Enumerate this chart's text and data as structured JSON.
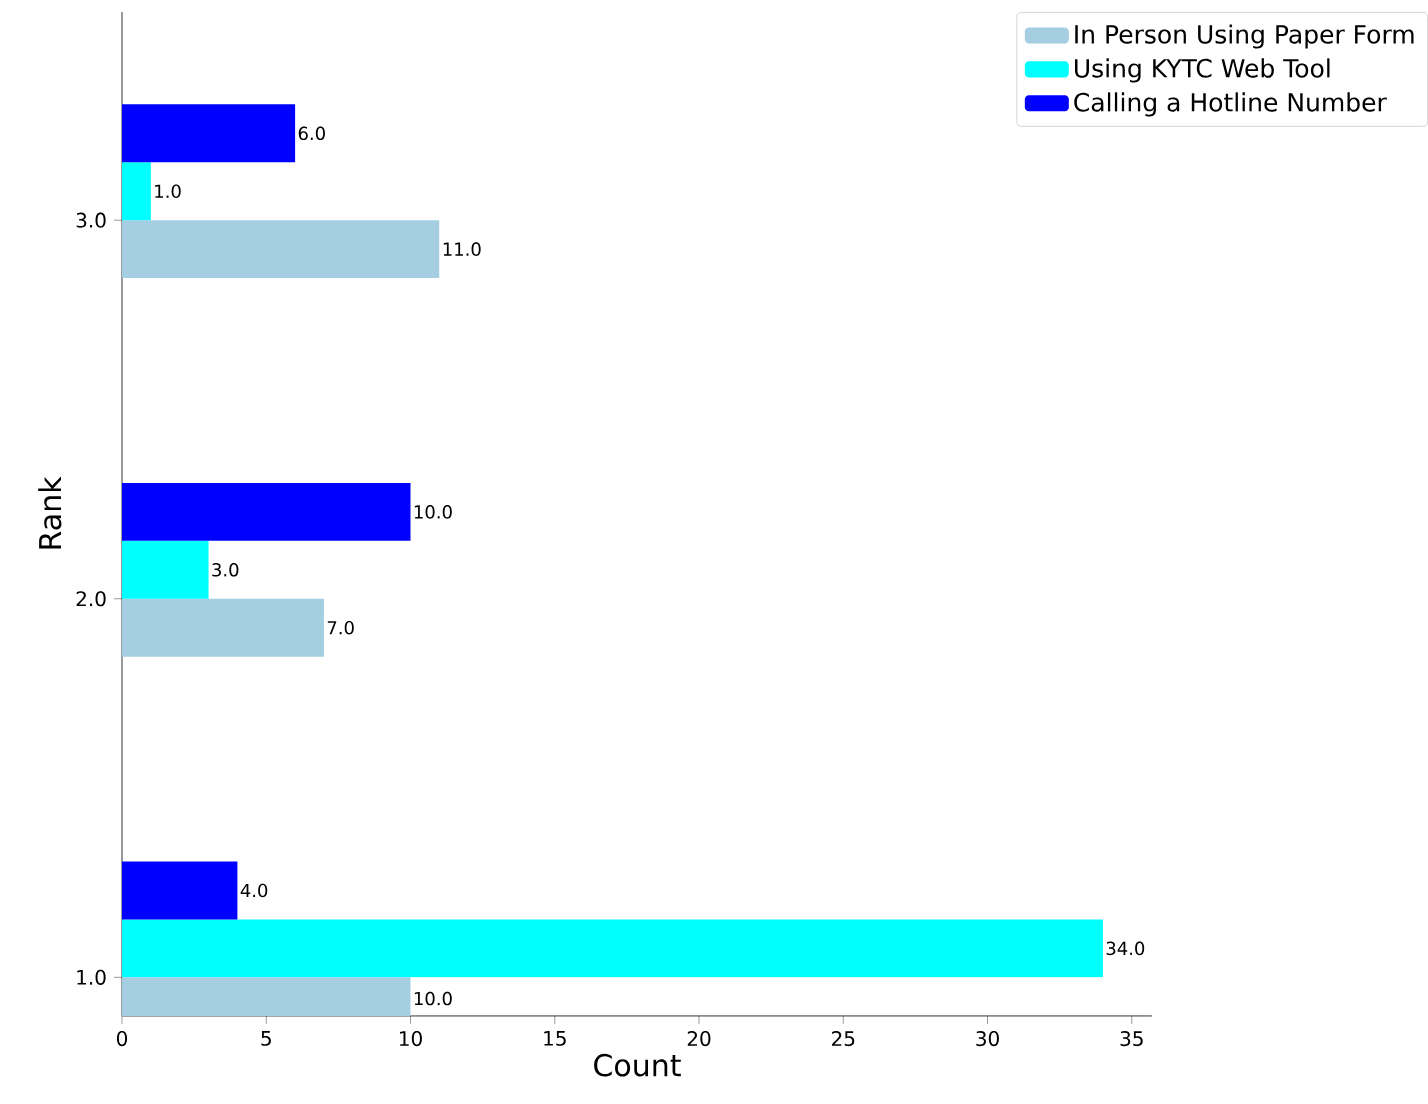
{
  "chart_data": {
    "type": "bar",
    "orientation": "horizontal",
    "xlabel": "Count",
    "ylabel": "Rank",
    "categories": [
      "3.0",
      "2.0",
      "1.0"
    ],
    "series": [
      {
        "name": "In Person Using Paper Form",
        "color": "#a6cee3",
        "values": [
          11,
          7,
          10
        ],
        "value_labels": [
          "11.0",
          "7.0",
          "10.0"
        ]
      },
      {
        "name": "Using KYTC Web Tool",
        "color": "#00ffff",
        "values": [
          1,
          3,
          34
        ],
        "value_labels": [
          "1.0",
          "3.0",
          "34.0"
        ]
      },
      {
        "name": "Calling a Hotline Number",
        "color": "#0000ff",
        "values": [
          6,
          10,
          4
        ],
        "value_labels": [
          "6.0",
          "10.0",
          "4.0"
        ]
      }
    ],
    "xlim": [
      0,
      35.7
    ],
    "xticks": [
      0,
      5,
      10,
      15,
      20,
      25,
      30,
      35
    ],
    "grid": false,
    "legend": "top right"
  }
}
